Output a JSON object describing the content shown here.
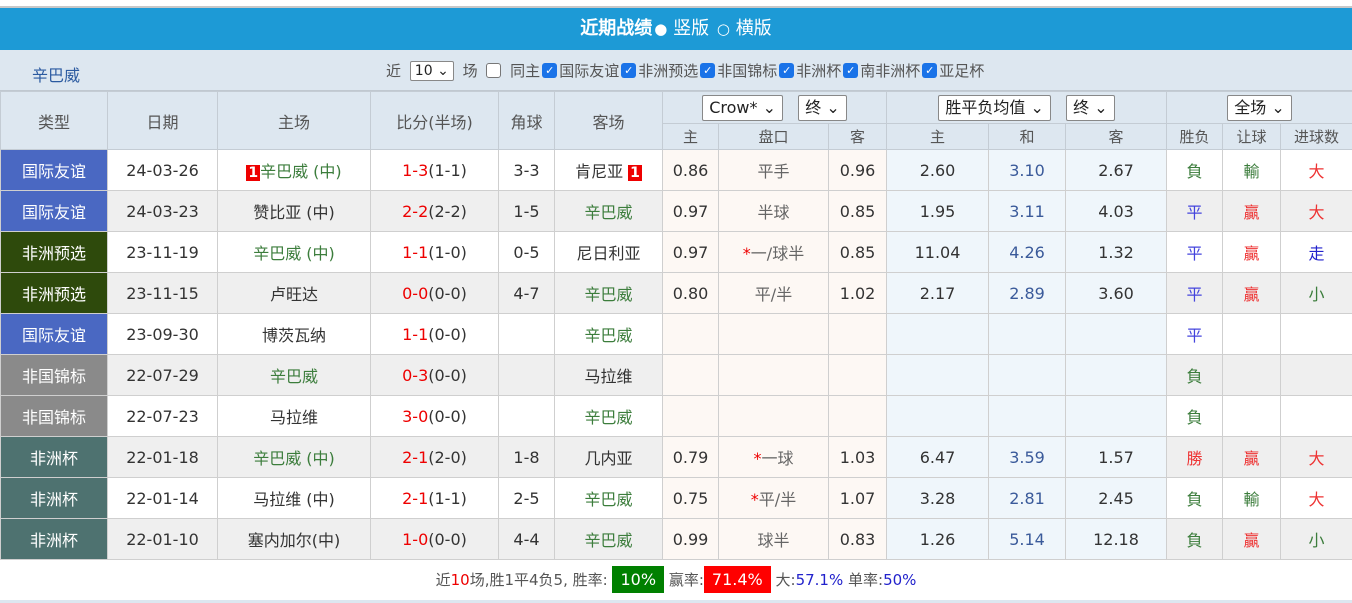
{
  "title": {
    "main": "近期战绩",
    "opt1": "竖版",
    "opt2": "横版"
  },
  "filter": {
    "team": "辛巴威",
    "near": "近",
    "count": "10",
    "unit": "场",
    "same_home": "同主",
    "comps": [
      "国际友谊",
      "非洲预选",
      "非国锦标",
      "非洲杯",
      "南非洲杯",
      "亚足杯"
    ]
  },
  "headers": {
    "type": "类型",
    "date": "日期",
    "home": "主场",
    "score": "比分(半场)",
    "corner": "角球",
    "away": "客场",
    "company": "Crow*",
    "ah_stage": "终",
    "eu_type": "胜平负均值",
    "eu_stage": "终",
    "scope": "全场",
    "sub": [
      "主",
      "盘口",
      "客",
      "主",
      "和",
      "客",
      "胜负",
      "让球",
      "进球数"
    ]
  },
  "rows": [
    {
      "type": "国际友谊",
      "tc": "#4a68c2",
      "date": "24-03-26",
      "home": "辛巴威 (中)",
      "hg": true,
      "hbadge": "1",
      "score": "1-3",
      "half": "(1-1)",
      "corner": "3-3",
      "away": "肯尼亚",
      "ag": false,
      "abadge": "1",
      "o": [
        "0.86",
        "平手",
        "0.96",
        "2.60",
        "3.10",
        "2.67"
      ],
      "star": false,
      "r": [
        "負",
        "輸",
        "大"
      ],
      "rc": [
        "#3c7d3c",
        "#3c7d3c",
        "#e33"
      ]
    },
    {
      "type": "国际友谊",
      "tc": "#4a68c2",
      "date": "24-03-23",
      "home": "赞比亚 (中)",
      "hg": false,
      "score": "2-2",
      "half": "(2-2)",
      "corner": "1-5",
      "away": "辛巴威",
      "ag": true,
      "o": [
        "0.97",
        "半球",
        "0.85",
        "1.95",
        "3.11",
        "4.03"
      ],
      "star": false,
      "r": [
        "平",
        "贏",
        "大"
      ],
      "rc": [
        "#44d",
        "#e33",
        "#e33"
      ]
    },
    {
      "type": "非洲预选",
      "tc": "#2e4a0c",
      "date": "23-11-19",
      "home": "辛巴威 (中)",
      "hg": true,
      "score": "1-1",
      "half": "(1-0)",
      "corner": "0-5",
      "away": "尼日利亚",
      "ag": false,
      "o": [
        "0.97",
        "一/球半",
        "0.85",
        "11.04",
        "4.26",
        "1.32"
      ],
      "star": true,
      "r": [
        "平",
        "贏",
        "走"
      ],
      "rc": [
        "#44d",
        "#e33",
        "#22c"
      ]
    },
    {
      "type": "非洲预选",
      "tc": "#2e4a0c",
      "date": "23-11-15",
      "home": "卢旺达",
      "hg": false,
      "score": "0-0",
      "half": "(0-0)",
      "corner": "4-7",
      "away": "辛巴威",
      "ag": true,
      "o": [
        "0.80",
        "平/半",
        "1.02",
        "2.17",
        "2.89",
        "3.60"
      ],
      "star": false,
      "r": [
        "平",
        "贏",
        "小"
      ],
      "rc": [
        "#44d",
        "#e33",
        "#3c7d3c"
      ]
    },
    {
      "type": "国际友谊",
      "tc": "#4a68c2",
      "date": "23-09-30",
      "home": "博茨瓦纳",
      "hg": false,
      "score": "1-1",
      "half": "(0-0)",
      "corner": "",
      "away": "辛巴威",
      "ag": true,
      "o": [
        "",
        "",
        "",
        "",
        "",
        ""
      ],
      "star": false,
      "r": [
        "平",
        "",
        ""
      ],
      "rc": [
        "#44d",
        "#333",
        "#333"
      ]
    },
    {
      "type": "非国锦标",
      "tc": "#8a8a8a",
      "date": "22-07-29",
      "home": "辛巴威",
      "hg": true,
      "score": "0-3",
      "half": "(0-0)",
      "corner": "",
      "away": "马拉维",
      "ag": false,
      "o": [
        "",
        "",
        "",
        "",
        "",
        ""
      ],
      "star": false,
      "r": [
        "負",
        "",
        ""
      ],
      "rc": [
        "#3c7d3c",
        "#333",
        "#333"
      ]
    },
    {
      "type": "非国锦标",
      "tc": "#8a8a8a",
      "date": "22-07-23",
      "home": "马拉维",
      "hg": false,
      "score": "3-0",
      "half": "(0-0)",
      "corner": "",
      "away": "辛巴威",
      "ag": true,
      "o": [
        "",
        "",
        "",
        "",
        "",
        ""
      ],
      "star": false,
      "r": [
        "負",
        "",
        ""
      ],
      "rc": [
        "#3c7d3c",
        "#333",
        "#333"
      ]
    },
    {
      "type": "非洲杯",
      "tc": "#4e7270",
      "date": "22-01-18",
      "home": "辛巴威 (中)",
      "hg": true,
      "score": "2-1",
      "half": "(2-0)",
      "corner": "1-8",
      "away": "几内亚",
      "ag": false,
      "o": [
        "0.79",
        "一球",
        "1.03",
        "6.47",
        "3.59",
        "1.57"
      ],
      "star": true,
      "r": [
        "勝",
        "贏",
        "大"
      ],
      "rc": [
        "#e33",
        "#e33",
        "#e33"
      ]
    },
    {
      "type": "非洲杯",
      "tc": "#4e7270",
      "date": "22-01-14",
      "home": "马拉维 (中)",
      "hg": false,
      "score": "2-1",
      "half": "(1-1)",
      "corner": "2-5",
      "away": "辛巴威",
      "ag": true,
      "o": [
        "0.75",
        "平/半",
        "1.07",
        "3.28",
        "2.81",
        "2.45"
      ],
      "star": true,
      "r": [
        "負",
        "輸",
        "大"
      ],
      "rc": [
        "#3c7d3c",
        "#3c7d3c",
        "#e33"
      ]
    },
    {
      "type": "非洲杯",
      "tc": "#4e7270",
      "date": "22-01-10",
      "home": "塞内加尔(中)",
      "hg": false,
      "score": "1-0",
      "half": "(0-0)",
      "corner": "4-4",
      "away": "辛巴威",
      "ag": true,
      "o": [
        "0.99",
        "球半",
        "0.83",
        "1.26",
        "5.14",
        "12.18"
      ],
      "star": false,
      "r": [
        "負",
        "贏",
        "小"
      ],
      "rc": [
        "#3c7d3c",
        "#e33",
        "#3c7d3c"
      ]
    }
  ],
  "footer": {
    "p1": "近",
    "n": "10",
    "p2": "场,胜1平4负5, 胜率:",
    "win": "10%",
    "p3": "赢率:",
    "ah": "71.4%",
    "p4": "大:",
    "big": "57.1%",
    "p5": "单率:",
    "odd": "50%"
  },
  "colors": {
    "accent": "#1d9ad6",
    "win_bg": "#008000",
    "ah_bg": "#ff0000"
  }
}
